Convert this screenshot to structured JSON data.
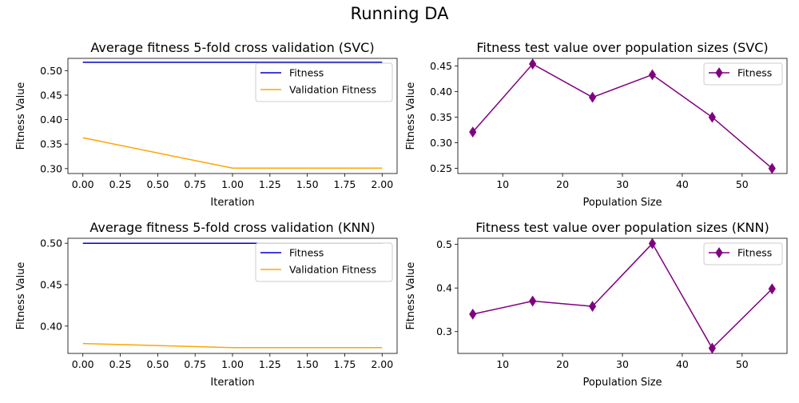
{
  "figure": {
    "suptitle": "Running DA"
  },
  "colors": {
    "fitness_line": "#0000cc",
    "validation_line": "#ffa500",
    "population_line": "#800080"
  },
  "chart_data": [
    {
      "type": "line",
      "title": "Average fitness 5-fold cross validation (SVC)",
      "xlabel": "Iteration",
      "ylabel": "Fitness Value",
      "x": [
        0,
        1,
        2
      ],
      "xlim": [
        -0.1,
        2.1
      ],
      "ylim": [
        0.29,
        0.525
      ],
      "xticks": [
        "0.00",
        "0.25",
        "0.50",
        "0.75",
        "1.00",
        "1.25",
        "1.50",
        "1.75",
        "2.00"
      ],
      "yticks": [
        "0.30",
        "0.35",
        "0.40",
        "0.45",
        "0.50"
      ],
      "legend": "top-right",
      "series": [
        {
          "name": "Fitness",
          "values": [
            0.517,
            0.517,
            0.517
          ],
          "color": "#0000cc"
        },
        {
          "name": "Validation Fitness",
          "values": [
            0.363,
            0.301,
            0.301
          ],
          "color": "#ffa500"
        }
      ]
    },
    {
      "type": "line",
      "title": "Fitness test value over population sizes (SVC)",
      "xlabel": "Population Size",
      "ylabel": "Fitness Value",
      "x": [
        5,
        15,
        25,
        35,
        45,
        55
      ],
      "xlim": [
        2.5,
        57.5
      ],
      "ylim": [
        0.24,
        0.465
      ],
      "xticks": [
        "10",
        "20",
        "30",
        "40",
        "50"
      ],
      "yticks": [
        "0.25",
        "0.30",
        "0.35",
        "0.40",
        "0.45"
      ],
      "marker": "diamond",
      "legend": "top-right",
      "series": [
        {
          "name": "Fitness",
          "values": [
            0.321,
            0.454,
            0.389,
            0.433,
            0.35,
            0.25
          ],
          "color": "#800080"
        }
      ]
    },
    {
      "type": "line",
      "title": "Average fitness 5-fold cross validation (KNN)",
      "xlabel": "Iteration",
      "ylabel": "Fitness Value",
      "x": [
        0,
        1,
        2
      ],
      "xlim": [
        -0.1,
        2.1
      ],
      "ylim": [
        0.367,
        0.506
      ],
      "xticks": [
        "0.00",
        "0.25",
        "0.50",
        "0.75",
        "1.00",
        "1.25",
        "1.50",
        "1.75",
        "2.00"
      ],
      "yticks": [
        "0.40",
        "0.45",
        "0.50"
      ],
      "legend": "top-right",
      "series": [
        {
          "name": "Fitness",
          "values": [
            0.5,
            0.5,
            0.5
          ],
          "color": "#0000cc"
        },
        {
          "name": "Validation Fitness",
          "values": [
            0.379,
            0.374,
            0.374
          ],
          "color": "#ffa500"
        }
      ]
    },
    {
      "type": "line",
      "title": "Fitness test value over population sizes (KNN)",
      "xlabel": "Population Size",
      "ylabel": "Fitness Value",
      "x": [
        5,
        15,
        25,
        35,
        45,
        55
      ],
      "xlim": [
        2.5,
        57.5
      ],
      "ylim": [
        0.25,
        0.514
      ],
      "xticks": [
        "10",
        "20",
        "30",
        "40",
        "50"
      ],
      "yticks": [
        "0.3",
        "0.4",
        "0.5"
      ],
      "marker": "diamond",
      "legend": "top-right",
      "series": [
        {
          "name": "Fitness",
          "values": [
            0.34,
            0.37,
            0.358,
            0.502,
            0.262,
            0.398
          ],
          "color": "#800080"
        }
      ]
    }
  ]
}
